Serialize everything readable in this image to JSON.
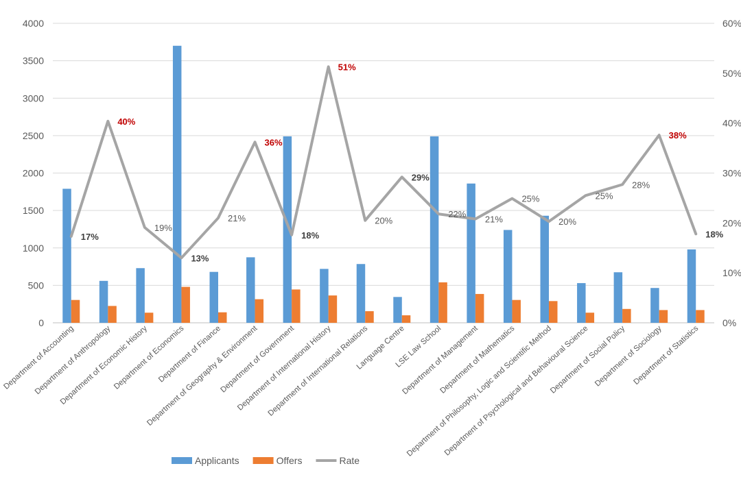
{
  "chart_data": {
    "type": "bar",
    "categories": [
      "Department of Accounting",
      "Department of Anthropology",
      "Department of Economic History",
      "Department of Economics",
      "Department of Finance",
      "Department of Geography & Environment",
      "Department of Government",
      "Department of International History",
      "Department of International Relations",
      "Language Centre",
      "LSE Law School",
      "Department of Management",
      "Department of Mathematics",
      "Department of Philosophy, Logic and Scientific Method",
      "Department of Psychological and Behavioural Science",
      "Department of Social Policy",
      "Department of Sociology",
      "Department of Statistics"
    ],
    "series": [
      {
        "name": "Applicants",
        "type": "bar",
        "axis": "left",
        "color": "#5B9BD5",
        "values": [
          1790,
          560,
          730,
          3700,
          680,
          875,
          2490,
          720,
          785,
          345,
          2490,
          1860,
          1240,
          1430,
          530,
          675,
          465,
          980
        ]
      },
      {
        "name": "Offers",
        "type": "bar",
        "axis": "left",
        "color": "#ED7D31",
        "values": [
          305,
          225,
          135,
          480,
          140,
          315,
          445,
          365,
          155,
          100,
          540,
          385,
          305,
          290,
          135,
          185,
          170,
          170
        ]
      },
      {
        "name": "Rate",
        "type": "line",
        "axis": "right",
        "color": "#A5A5A5",
        "values": [
          17.3,
          40.4,
          19.1,
          13.0,
          21.0,
          36.2,
          17.6,
          51.3,
          20.5,
          29.2,
          21.8,
          20.8,
          24.9,
          20.3,
          25.5,
          27.7,
          37.6,
          17.8
        ],
        "labels": [
          "17%",
          "40%",
          "19%",
          "13%",
          "21%",
          "36%",
          "18%",
          "51%",
          "20%",
          "29%",
          "22%",
          "21%",
          "25%",
          "20%",
          "25%",
          "28%",
          "38%",
          "18%"
        ],
        "label_colors": [
          "#404040",
          "#C00000",
          "#595959",
          "#404040",
          "#595959",
          "#C00000",
          "#404040",
          "#C00000",
          "#595959",
          "#404040",
          "#595959",
          "#595959",
          "#595959",
          "#595959",
          "#595959",
          "#595959",
          "#C00000",
          "#404040"
        ],
        "label_bold": [
          true,
          true,
          false,
          true,
          false,
          true,
          true,
          true,
          false,
          true,
          false,
          false,
          false,
          false,
          false,
          false,
          true,
          true
        ]
      }
    ],
    "y_left": {
      "min": 0,
      "max": 4000,
      "ticks": [
        0,
        500,
        1000,
        1500,
        2000,
        2500,
        3000,
        3500,
        4000
      ],
      "tick_labels": [
        "0",
        "500",
        "1000",
        "1500",
        "2000",
        "2500",
        "3000",
        "3500",
        "4000"
      ]
    },
    "y_right": {
      "min": 0,
      "max": 60,
      "ticks": [
        0,
        10,
        20,
        30,
        40,
        50,
        60
      ],
      "tick_labels": [
        "0%",
        "10%",
        "20%",
        "30%",
        "40%",
        "50%",
        "60%"
      ]
    },
    "grid": true,
    "legend": {
      "position": "bottom",
      "items": [
        {
          "label": "Applicants",
          "color": "#5B9BD5",
          "kind": "bar"
        },
        {
          "label": "Offers",
          "color": "#ED7D31",
          "kind": "bar"
        },
        {
          "label": "Rate",
          "color": "#A5A5A5",
          "kind": "line"
        }
      ]
    }
  }
}
